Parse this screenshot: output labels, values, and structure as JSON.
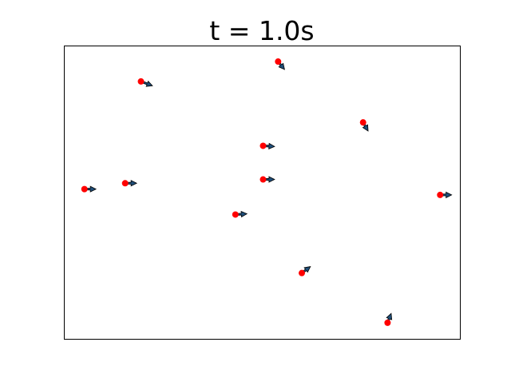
{
  "chart_data": {
    "type": "scatter",
    "title": "t = 1.0s",
    "xlabel": "",
    "ylabel": "",
    "axes_ticks_shown": false,
    "grid": false,
    "point_color": "#ff0000",
    "arrow_fill": "#1f4e79",
    "arrow_edge": "#000000",
    "points": [
      {
        "x": 0.05,
        "y": 0.512,
        "u": 0.8,
        "v": 0.0
      },
      {
        "x": 0.153,
        "y": 0.532,
        "u": 0.8,
        "v": 0.0
      },
      {
        "x": 0.193,
        "y": 0.88,
        "u": 0.8,
        "v": -0.3
      },
      {
        "x": 0.432,
        "y": 0.425,
        "u": 0.8,
        "v": 0.05
      },
      {
        "x": 0.502,
        "y": 0.545,
        "u": 0.8,
        "v": 0.0
      },
      {
        "x": 0.502,
        "y": 0.66,
        "u": 0.8,
        "v": -0.05
      },
      {
        "x": 0.54,
        "y": 0.948,
        "u": 0.45,
        "v": -0.55
      },
      {
        "x": 0.6,
        "y": 0.225,
        "u": 0.6,
        "v": 0.45
      },
      {
        "x": 0.755,
        "y": 0.74,
        "u": 0.35,
        "v": -0.6
      },
      {
        "x": 0.817,
        "y": 0.055,
        "u": 0.25,
        "v": 0.65
      },
      {
        "x": 0.95,
        "y": 0.492,
        "u": 0.8,
        "v": 0.0
      }
    ]
  }
}
